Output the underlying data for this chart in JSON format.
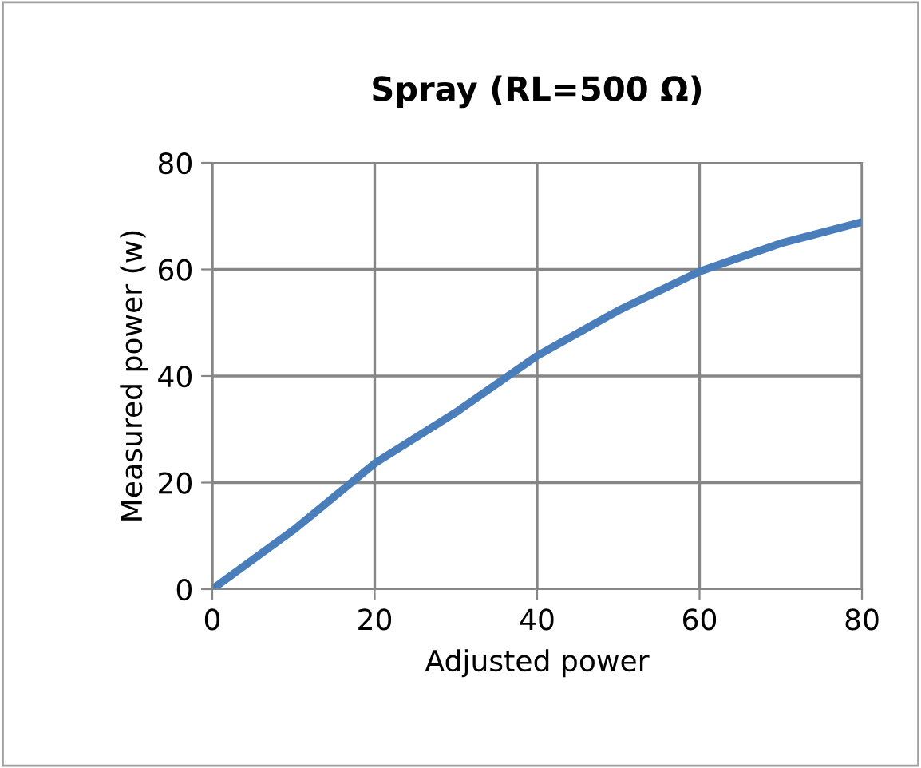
{
  "chart_data": {
    "type": "line",
    "title": "Spray (RL=500 Ω)",
    "xlabel": "Adjusted power",
    "ylabel": "Measured power (w)",
    "x": [
      0,
      10,
      20,
      30,
      40,
      50,
      60,
      70,
      80
    ],
    "series": [
      {
        "color": "#4a7ebb",
        "values": [
          0,
          11.1,
          23.6,
          33.2,
          43.8,
          52.3,
          59.6,
          64.9,
          68.9
        ]
      }
    ],
    "xlim": [
      0,
      80
    ],
    "xticks": [
      0,
      20,
      40,
      60,
      80
    ],
    "ylim": [
      0,
      80
    ],
    "yticks": [
      0,
      20,
      40,
      60,
      80
    ],
    "grid": true,
    "marker": "none",
    "line_style": "solid"
  }
}
